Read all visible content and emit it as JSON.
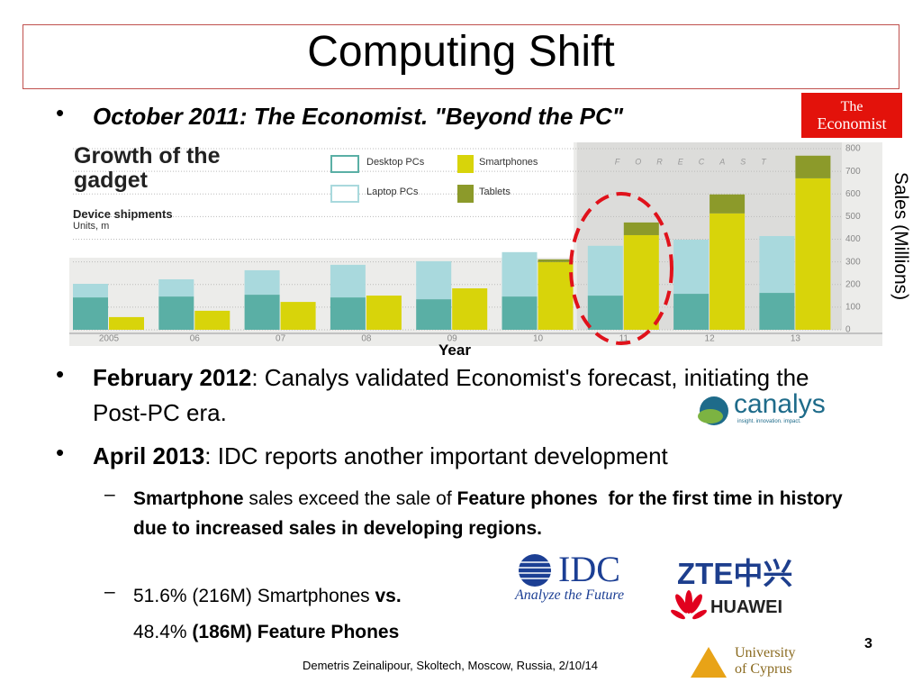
{
  "slide": {
    "title": "Computing Shift",
    "bullets": [
      {
        "runs": [
          {
            "text": "October 2011: The Economist. \"Beyond the PC\"",
            "style": "bold-italic"
          }
        ]
      },
      {
        "runs": [
          {
            "text": "February 2012",
            "style": "bold"
          },
          {
            "text": ": Canalys validated Economist's forecast, initiating the Post-PC era."
          }
        ]
      },
      {
        "runs": [
          {
            "text": "April 2013",
            "style": "bold"
          },
          {
            "text": ": IDC reports another important development"
          }
        ]
      }
    ],
    "sub_bullets": [
      {
        "runs": [
          {
            "text": "Smartphone",
            "style": "bold"
          },
          {
            "text": " sales exceed the sale of "
          },
          {
            "text": "Feature phones  for the first time in history due to increased sales in developing regions.",
            "style": "bold"
          }
        ]
      },
      {
        "runs": [
          {
            "text": "51.6% (216M) Smartphones "
          },
          {
            "text": "vs.",
            "style": "bold"
          }
        ]
      },
      {
        "runs": [
          {
            "text": "48.4% "
          },
          {
            "text": "(186M) Feature Phones",
            "style": "bold"
          }
        ],
        "continuation": true
      }
    ],
    "footer": "Demetris Zeinalipour, Skoltech, Moscow, Russia, 2/10/14",
    "page_number": 3
  },
  "logos": {
    "economist": [
      "The",
      "Economist"
    ],
    "canalys": [
      "canalys",
      "insight. innovation. impact."
    ],
    "idc": [
      "IDC",
      "Analyze the Future"
    ],
    "zte": "ZTE中兴",
    "huawei": "HUAWEI",
    "ucy": [
      "University",
      "of Cyprus"
    ]
  },
  "chart_data": {
    "type": "bar",
    "stacked": true,
    "title": "Growth of the gadget",
    "subtitle": "Device shipments",
    "units": "Units, m",
    "annotation": "FORECAST",
    "forecast_start": "11",
    "x_label": "Year",
    "y_label": "Sales (Millions)",
    "categories": [
      "2005",
      "06",
      "07",
      "08",
      "09",
      "10",
      "11",
      "12",
      "13"
    ],
    "series": [
      {
        "name": "Desktop PCs",
        "stack": "pc",
        "color": "#5aafa5",
        "values": [
          143,
          147,
          155,
          143,
          135,
          147,
          151,
          159,
          163
        ]
      },
      {
        "name": "Laptop PCs",
        "stack": "pc",
        "color": "#a9d9dd",
        "values": [
          60,
          76,
          108,
          144,
          168,
          196,
          220,
          239,
          251
        ]
      },
      {
        "name": "Smartphones",
        "stack": "mobile",
        "color": "#d8d40a",
        "values": [
          56,
          84,
          123,
          151,
          183,
          299,
          418,
          514,
          669
        ]
      },
      {
        "name": "Tablets",
        "stack": "mobile",
        "color": "#8c9a2a",
        "values": [
          0,
          0,
          0,
          0,
          0,
          12,
          56,
          84,
          100
        ]
      }
    ],
    "ylim": [
      0,
      800
    ],
    "yticks": [
      0,
      100,
      200,
      300,
      400,
      500,
      600,
      700,
      800
    ],
    "y_axis_side": "right",
    "grid": true
  }
}
